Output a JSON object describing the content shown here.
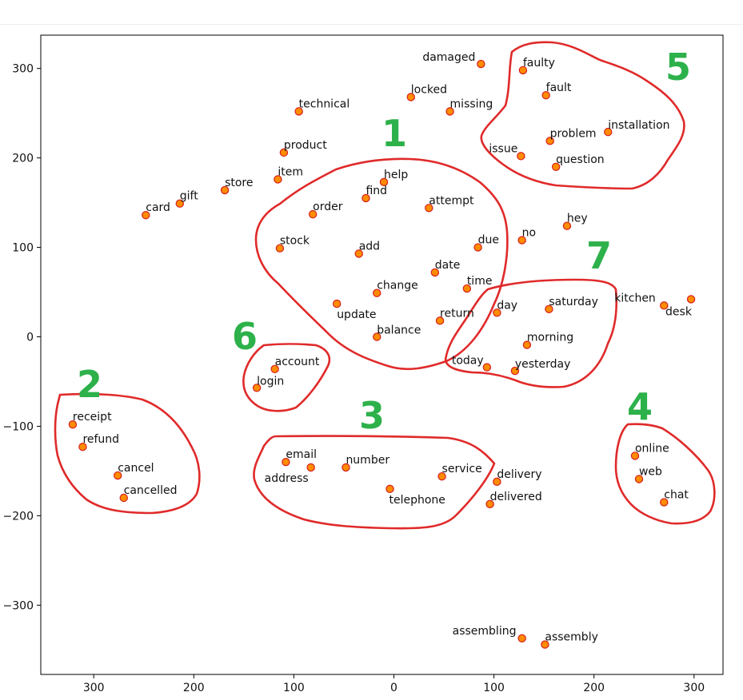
{
  "chart_data": {
    "type": "scatter",
    "title": "",
    "xlabel": "",
    "ylabel": "",
    "xlim": [
      345,
      -330
    ],
    "ylim": [
      -375,
      338
    ],
    "x_reversed": true,
    "grid": false,
    "legend": "none",
    "xticks": [
      "300",
      "200",
      "100",
      "0",
      "100",
      "200",
      "300"
    ],
    "xtick_values": [
      300,
      200,
      100,
      0,
      -100,
      -200,
      -300
    ],
    "yticks": [
      "300",
      "200",
      "100",
      "0",
      "−100",
      "−200",
      "−300"
    ],
    "ytick_values": [
      300,
      200,
      100,
      0,
      -100,
      -200,
      -300
    ],
    "colors": {
      "point_fill": "#ff8c00",
      "point_edge": "#d62020",
      "outline": "#e02a2a",
      "cluster_label": "#2db14a"
    },
    "points": [
      {
        "label": "damaged",
        "x": -87,
        "y": 305
      },
      {
        "label": "faulty",
        "x": -129,
        "y": 298
      },
      {
        "label": "fault",
        "x": -152,
        "y": 270
      },
      {
        "label": "locked",
        "x": -17,
        "y": 268
      },
      {
        "label": "missing",
        "x": -56,
        "y": 252
      },
      {
        "label": "technical",
        "x": 95,
        "y": 252
      },
      {
        "label": "installation",
        "x": -214,
        "y": 229
      },
      {
        "label": "problem",
        "x": -156,
        "y": 219
      },
      {
        "label": "product",
        "x": 110,
        "y": 206
      },
      {
        "label": "issue",
        "x": -127,
        "y": 202
      },
      {
        "label": "question",
        "x": -162,
        "y": 190
      },
      {
        "label": "item",
        "x": 116,
        "y": 176
      },
      {
        "label": "help",
        "x": 10,
        "y": 173
      },
      {
        "label": "store",
        "x": 169,
        "y": 164
      },
      {
        "label": "find",
        "x": 28,
        "y": 155
      },
      {
        "label": "gift",
        "x": 214,
        "y": 149
      },
      {
        "label": "attempt",
        "x": -35,
        "y": 144
      },
      {
        "label": "order",
        "x": 81,
        "y": 137
      },
      {
        "label": "card",
        "x": 248,
        "y": 136
      },
      {
        "label": "hey",
        "x": -173,
        "y": 124
      },
      {
        "label": "no",
        "x": -128,
        "y": 108
      },
      {
        "label": "due",
        "x": -84,
        "y": 100
      },
      {
        "label": "stock",
        "x": 114,
        "y": 99
      },
      {
        "label": "add",
        "x": 35,
        "y": 93
      },
      {
        "label": "date",
        "x": -41,
        "y": 72
      },
      {
        "label": "change",
        "x": 17,
        "y": 49
      },
      {
        "label": "time",
        "x": -73,
        "y": 54
      },
      {
        "label": "kitchen",
        "x": -270,
        "y": 35
      },
      {
        "label": "desk",
        "x": -297,
        "y": 42
      },
      {
        "label": "update",
        "x": 57,
        "y": 37
      },
      {
        "label": "saturday",
        "x": -155,
        "y": 31
      },
      {
        "label": "day",
        "x": -103,
        "y": 27
      },
      {
        "label": "return",
        "x": -46,
        "y": 18
      },
      {
        "label": "balance",
        "x": 17,
        "y": 0
      },
      {
        "label": "morning",
        "x": -133,
        "y": -9
      },
      {
        "label": "account",
        "x": 119,
        "y": -36
      },
      {
        "label": "today",
        "x": -93,
        "y": -34
      },
      {
        "label": "yesterday",
        "x": -121,
        "y": -38
      },
      {
        "label": "login",
        "x": 137,
        "y": -57
      },
      {
        "label": "receipt",
        "x": 321,
        "y": -98
      },
      {
        "label": "refund",
        "x": 311,
        "y": -123
      },
      {
        "label": "online",
        "x": -241,
        "y": -133
      },
      {
        "label": "email",
        "x": 108,
        "y": -140
      },
      {
        "label": "address",
        "x": 83,
        "y": -146
      },
      {
        "label": "number",
        "x": 48,
        "y": -146
      },
      {
        "label": "cancel",
        "x": 276,
        "y": -155
      },
      {
        "label": "service",
        "x": -48,
        "y": -156
      },
      {
        "label": "web",
        "x": -245,
        "y": -159
      },
      {
        "label": "delivery",
        "x": -103,
        "y": -162
      },
      {
        "label": "telephone",
        "x": 4,
        "y": -170
      },
      {
        "label": "cancelled",
        "x": 270,
        "y": -180
      },
      {
        "label": "chat",
        "x": -270,
        "y": -185
      },
      {
        "label": "delivered",
        "x": -96,
        "y": -187
      },
      {
        "label": "assembling",
        "x": -128,
        "y": -337
      },
      {
        "label": "assembly",
        "x": -151,
        "y": -344
      }
    ],
    "clusters": [
      {
        "label": "1",
        "members": [
          "help",
          "find",
          "order",
          "attempt",
          "stock",
          "add",
          "due",
          "date",
          "change",
          "time",
          "update",
          "return",
          "balance"
        ]
      },
      {
        "label": "2",
        "members": [
          "receipt",
          "refund",
          "cancel",
          "cancelled"
        ]
      },
      {
        "label": "3",
        "members": [
          "email",
          "address",
          "number",
          "service",
          "telephone",
          "delivery",
          "delivered"
        ]
      },
      {
        "label": "4",
        "members": [
          "online",
          "web",
          "chat"
        ]
      },
      {
        "label": "5",
        "members": [
          "faulty",
          "fault",
          "problem",
          "installation",
          "issue",
          "question"
        ]
      },
      {
        "label": "6",
        "members": [
          "account",
          "login"
        ]
      },
      {
        "label": "7",
        "members": [
          "day",
          "saturday",
          "morning",
          "today",
          "yesterday"
        ]
      }
    ]
  }
}
